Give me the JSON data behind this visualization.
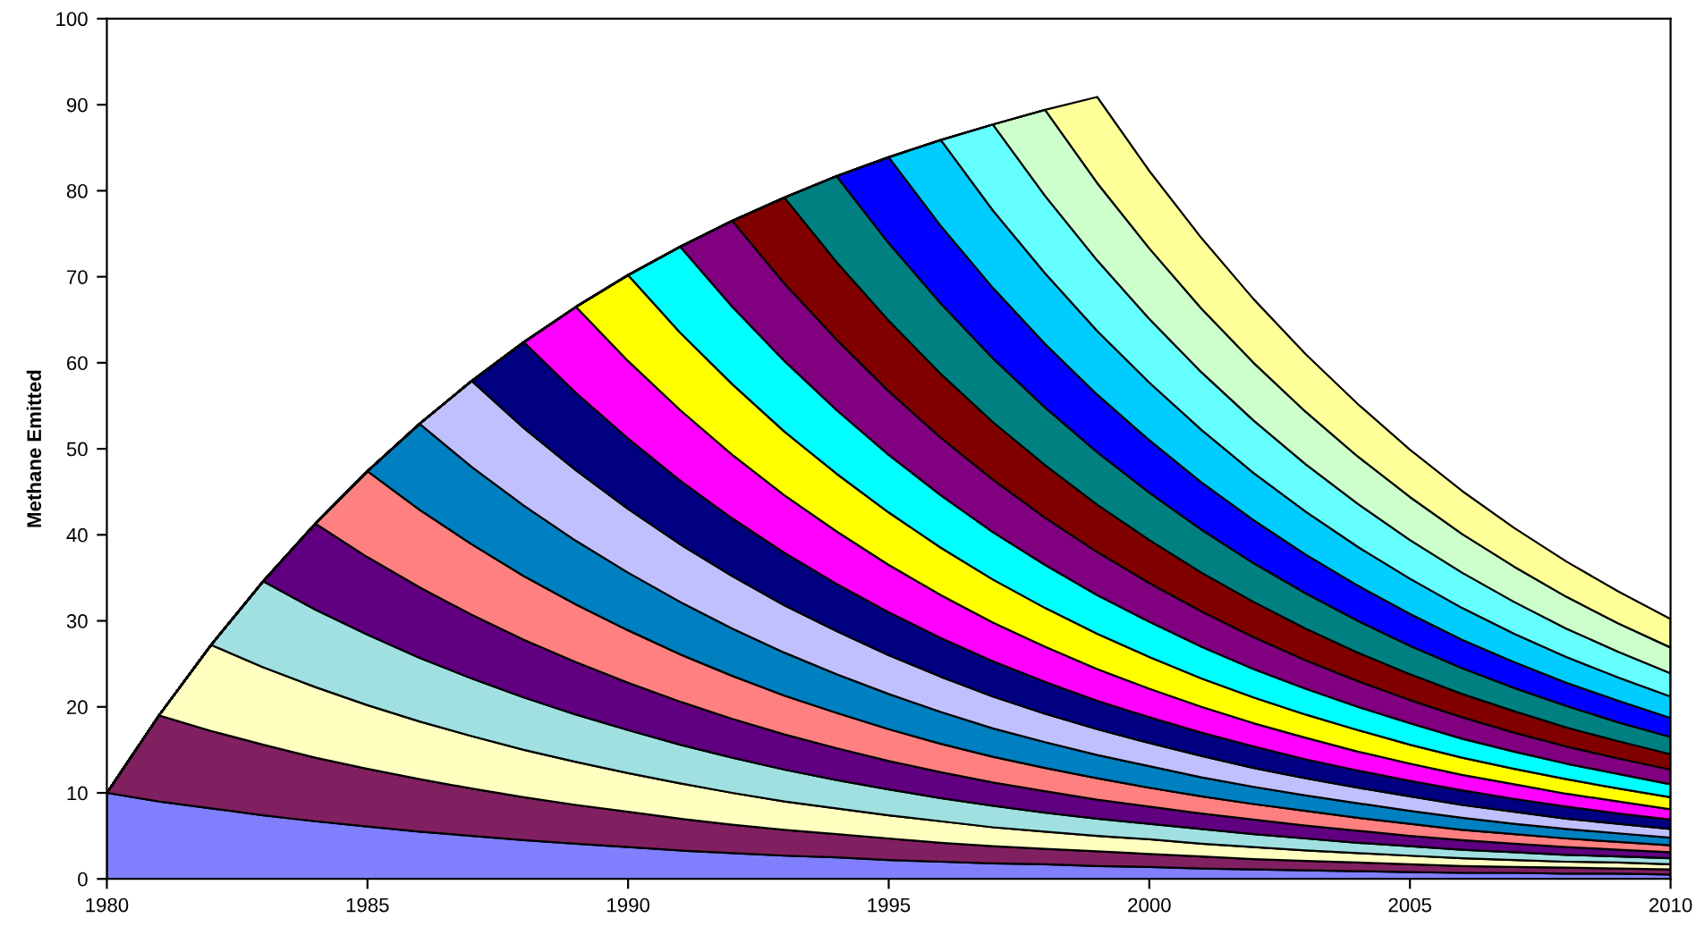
{
  "chart_data": {
    "type": "area",
    "stacked": true,
    "ylabel": "Methane Emitted",
    "grid": false,
    "x": [
      1980,
      1981,
      1982,
      1983,
      1984,
      1985,
      1986,
      1987,
      1988,
      1989,
      1990,
      1991,
      1992,
      1993,
      1994,
      1995,
      1996,
      1997,
      1998,
      1999,
      2000,
      2001,
      2002,
      2003,
      2004,
      2005,
      2006,
      2007,
      2008,
      2009,
      2010
    ],
    "xlim": [
      1980,
      2010
    ],
    "xticks": [
      1980,
      1985,
      1990,
      1995,
      2000,
      2005,
      2010
    ],
    "ylim": [
      0,
      100
    ],
    "yticks": [
      0,
      10,
      20,
      30,
      40,
      50,
      60,
      70,
      80,
      90,
      100
    ],
    "series": [
      {
        "color": "#8080ff",
        "values": [
          10,
          9.0,
          8.2,
          7.4,
          6.7,
          6.1,
          5.5,
          5.0,
          4.5,
          4.1,
          3.7,
          3.3,
          3.0,
          2.7,
          2.5,
          2.2,
          2.0,
          1.8,
          1.7,
          1.5,
          1.4,
          1.2,
          1.1,
          1.0,
          0.9,
          0.8,
          0.7,
          0.7,
          0.6,
          0.6,
          0.5
        ]
      },
      {
        "color": "#802060",
        "values": [
          0,
          10,
          9.0,
          8.2,
          7.4,
          6.7,
          6.1,
          5.5,
          5.0,
          4.5,
          4.1,
          3.7,
          3.3,
          3.0,
          2.7,
          2.5,
          2.2,
          2.0,
          1.8,
          1.7,
          1.5,
          1.4,
          1.2,
          1.1,
          1.0,
          0.9,
          0.8,
          0.7,
          0.7,
          0.6,
          0.6
        ]
      },
      {
        "color": "#ffffc0",
        "values": [
          0,
          0,
          10,
          9.0,
          8.2,
          7.4,
          6.7,
          6.1,
          5.5,
          5.0,
          4.5,
          4.1,
          3.7,
          3.3,
          3.0,
          2.7,
          2.5,
          2.2,
          2.0,
          1.8,
          1.7,
          1.5,
          1.4,
          1.2,
          1.1,
          1.0,
          0.9,
          0.8,
          0.7,
          0.7,
          0.6
        ]
      },
      {
        "color": "#a0e0e0",
        "values": [
          0,
          0,
          0,
          10,
          9.0,
          8.2,
          7.4,
          6.7,
          6.1,
          5.5,
          5.0,
          4.5,
          4.1,
          3.7,
          3.3,
          3.0,
          2.7,
          2.5,
          2.2,
          2.0,
          1.8,
          1.7,
          1.5,
          1.4,
          1.2,
          1.1,
          1.0,
          0.9,
          0.8,
          0.7,
          0.7
        ]
      },
      {
        "color": "#600080",
        "values": [
          0,
          0,
          0,
          0,
          10,
          9.0,
          8.2,
          7.4,
          6.7,
          6.1,
          5.5,
          5.0,
          4.5,
          4.1,
          3.7,
          3.3,
          3.0,
          2.7,
          2.5,
          2.2,
          2.0,
          1.8,
          1.7,
          1.5,
          1.4,
          1.2,
          1.1,
          1.0,
          0.9,
          0.8,
          0.7
        ]
      },
      {
        "color": "#ff8080",
        "values": [
          0,
          0,
          0,
          0,
          0,
          10,
          9.0,
          8.2,
          7.4,
          6.7,
          6.1,
          5.5,
          5.0,
          4.5,
          4.1,
          3.7,
          3.3,
          3.0,
          2.7,
          2.5,
          2.2,
          2.0,
          1.8,
          1.7,
          1.5,
          1.4,
          1.2,
          1.1,
          1.0,
          0.9,
          0.8
        ]
      },
      {
        "color": "#0080c0",
        "values": [
          0,
          0,
          0,
          0,
          0,
          0,
          10,
          9.0,
          8.2,
          7.4,
          6.7,
          6.1,
          5.5,
          5.0,
          4.5,
          4.1,
          3.7,
          3.3,
          3.0,
          2.7,
          2.5,
          2.2,
          2.0,
          1.8,
          1.7,
          1.5,
          1.4,
          1.2,
          1.1,
          1.0,
          0.9
        ]
      },
      {
        "color": "#c0c0ff",
        "values": [
          0,
          0,
          0,
          0,
          0,
          0,
          0,
          10,
          9.0,
          8.2,
          7.4,
          6.7,
          6.1,
          5.5,
          5.0,
          4.5,
          4.1,
          3.7,
          3.3,
          3.0,
          2.7,
          2.5,
          2.2,
          2.0,
          1.8,
          1.7,
          1.5,
          1.4,
          1.2,
          1.1,
          1.0
        ]
      },
      {
        "color": "#000080",
        "values": [
          0,
          0,
          0,
          0,
          0,
          0,
          0,
          0,
          10,
          9.0,
          8.2,
          7.4,
          6.7,
          6.1,
          5.5,
          5.0,
          4.5,
          4.1,
          3.7,
          3.3,
          3.0,
          2.7,
          2.5,
          2.2,
          2.0,
          1.8,
          1.7,
          1.5,
          1.4,
          1.2,
          1.1
        ]
      },
      {
        "color": "#ff00ff",
        "values": [
          0,
          0,
          0,
          0,
          0,
          0,
          0,
          0,
          0,
          10,
          9.0,
          8.2,
          7.4,
          6.7,
          6.1,
          5.5,
          5.0,
          4.5,
          4.1,
          3.7,
          3.3,
          3.0,
          2.7,
          2.5,
          2.2,
          2.0,
          1.8,
          1.7,
          1.5,
          1.4,
          1.2
        ]
      },
      {
        "color": "#ffff00",
        "values": [
          0,
          0,
          0,
          0,
          0,
          0,
          0,
          0,
          0,
          0,
          10,
          9.0,
          8.2,
          7.4,
          6.7,
          6.1,
          5.5,
          5.0,
          4.5,
          4.1,
          3.7,
          3.3,
          3.0,
          2.7,
          2.5,
          2.2,
          2.0,
          1.8,
          1.7,
          1.5,
          1.4
        ]
      },
      {
        "color": "#00ffff",
        "values": [
          0,
          0,
          0,
          0,
          0,
          0,
          0,
          0,
          0,
          0,
          0,
          10,
          9.0,
          8.2,
          7.4,
          6.7,
          6.1,
          5.5,
          5.0,
          4.5,
          4.1,
          3.7,
          3.3,
          3.0,
          2.7,
          2.5,
          2.2,
          2.0,
          1.8,
          1.7,
          1.5
        ]
      },
      {
        "color": "#800080",
        "values": [
          0,
          0,
          0,
          0,
          0,
          0,
          0,
          0,
          0,
          0,
          0,
          0,
          10,
          9.0,
          8.2,
          7.4,
          6.7,
          6.1,
          5.5,
          5.0,
          4.5,
          4.1,
          3.7,
          3.3,
          3.0,
          2.7,
          2.5,
          2.2,
          2.0,
          1.8,
          1.7
        ]
      },
      {
        "color": "#800000",
        "values": [
          0,
          0,
          0,
          0,
          0,
          0,
          0,
          0,
          0,
          0,
          0,
          0,
          0,
          10,
          9.0,
          8.2,
          7.4,
          6.7,
          6.1,
          5.5,
          5.0,
          4.5,
          4.1,
          3.7,
          3.3,
          3.0,
          2.7,
          2.5,
          2.2,
          2.0,
          1.8
        ]
      },
      {
        "color": "#008080",
        "values": [
          0,
          0,
          0,
          0,
          0,
          0,
          0,
          0,
          0,
          0,
          0,
          0,
          0,
          0,
          10,
          9.0,
          8.2,
          7.4,
          6.7,
          6.1,
          5.5,
          5.0,
          4.5,
          4.1,
          3.7,
          3.3,
          3.0,
          2.7,
          2.5,
          2.2,
          2.0
        ]
      },
      {
        "color": "#0000ff",
        "values": [
          0,
          0,
          0,
          0,
          0,
          0,
          0,
          0,
          0,
          0,
          0,
          0,
          0,
          0,
          0,
          10,
          9.0,
          8.2,
          7.4,
          6.7,
          6.1,
          5.5,
          5.0,
          4.5,
          4.1,
          3.7,
          3.3,
          3.0,
          2.7,
          2.5,
          2.2
        ]
      },
      {
        "color": "#00ccff",
        "values": [
          0,
          0,
          0,
          0,
          0,
          0,
          0,
          0,
          0,
          0,
          0,
          0,
          0,
          0,
          0,
          0,
          10,
          9.0,
          8.2,
          7.4,
          6.7,
          6.1,
          5.5,
          5.0,
          4.5,
          4.1,
          3.7,
          3.3,
          3.0,
          2.7,
          2.5
        ]
      },
      {
        "color": "#66ffff",
        "values": [
          0,
          0,
          0,
          0,
          0,
          0,
          0,
          0,
          0,
          0,
          0,
          0,
          0,
          0,
          0,
          0,
          0,
          10,
          9.0,
          8.2,
          7.4,
          6.7,
          6.1,
          5.5,
          5.0,
          4.5,
          4.1,
          3.7,
          3.3,
          3.0,
          2.7
        ]
      },
      {
        "color": "#ccffcc",
        "values": [
          0,
          0,
          0,
          0,
          0,
          0,
          0,
          0,
          0,
          0,
          0,
          0,
          0,
          0,
          0,
          0,
          0,
          0,
          10,
          9.0,
          8.2,
          7.4,
          6.7,
          6.1,
          5.5,
          5.0,
          4.5,
          4.1,
          3.7,
          3.3,
          3.0
        ]
      },
      {
        "color": "#ffff99",
        "values": [
          0,
          0,
          0,
          0,
          0,
          0,
          0,
          0,
          0,
          0,
          0,
          0,
          0,
          0,
          0,
          0,
          0,
          0,
          0,
          10,
          9.0,
          8.2,
          7.4,
          6.7,
          6.1,
          5.5,
          5.0,
          4.5,
          4.1,
          3.7,
          3.3
        ]
      }
    ]
  }
}
